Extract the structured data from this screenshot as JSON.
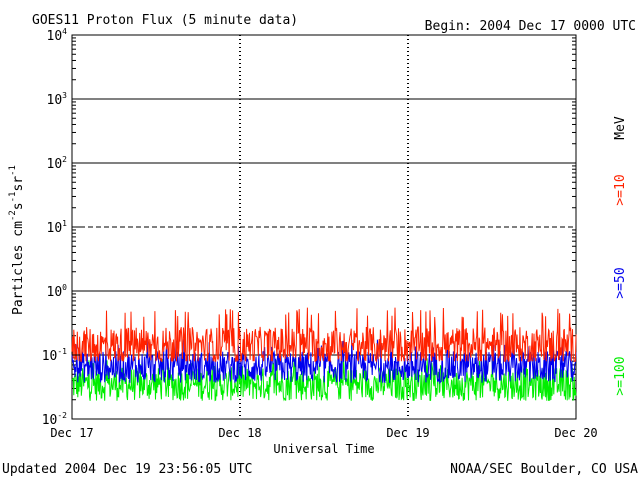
{
  "header": {
    "title": "GOES11 Proton Flux (5 minute data)",
    "begin": "Begin: 2004 Dec 17 0000 UTC"
  },
  "footer": {
    "updated": "Updated 2004 Dec 19 23:56:05 UTC",
    "credit": "NOAA/SEC Boulder, CO USA"
  },
  "chart_data": {
    "type": "line",
    "title": "GOES11 Proton Flux (5 minute data)",
    "xlabel": "Universal Time",
    "ylabel": "Particles cm-2s-1sr-1",
    "y_scale": "log",
    "ylim": [
      0.01,
      10000
    ],
    "y_ticks": [
      {
        "base": "10",
        "exp": "-2"
      },
      {
        "base": "10",
        "exp": "-1"
      },
      {
        "base": "10",
        "exp": "0"
      },
      {
        "base": "10",
        "exp": "1"
      },
      {
        "base": "10",
        "exp": "2"
      },
      {
        "base": "10",
        "exp": "3"
      },
      {
        "base": "10",
        "exp": "4"
      }
    ],
    "x_ticks": [
      "Dec 17",
      "Dec 18",
      "Dec 19",
      "Dec 20"
    ],
    "unit_label": "MeV",
    "series": [
      {
        "name": ">=10",
        "color": "#ff2200",
        "typical": 0.14,
        "low": 0.08,
        "high": 0.55
      },
      {
        "name": ">=50",
        "color": "#0000ee",
        "typical": 0.065,
        "low": 0.035,
        "high": 0.18
      },
      {
        "name": ">=100",
        "color": "#00ee00",
        "typical": 0.035,
        "low": 0.016,
        "high": 0.09
      }
    ],
    "dashed_reference_level": 10,
    "grid": true,
    "legend": "right-vertical"
  }
}
